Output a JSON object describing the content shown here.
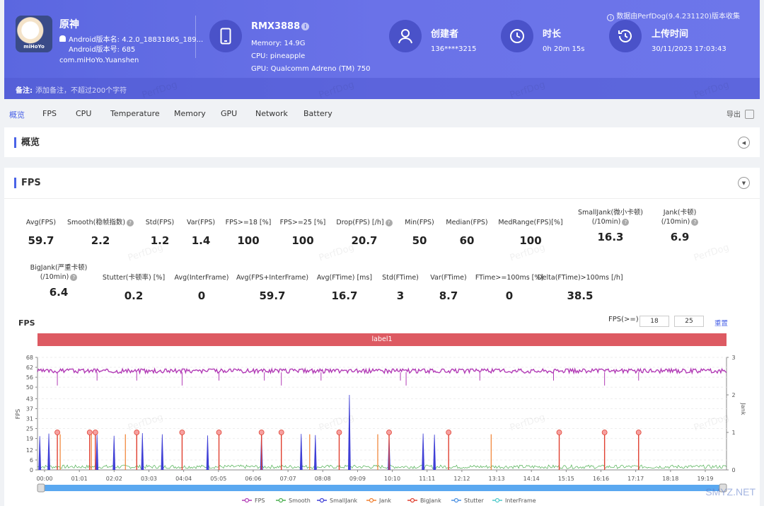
{
  "header": {
    "collect_note": "数据由PerfDog(9.4.231120)版本收集",
    "app": {
      "logo_text": "miHoYo",
      "name": "原神",
      "version_name": "Android版本名: 4.2.0_18831865_189...",
      "version_code": "Android版本号: 685",
      "package": "com.miHoYo.Yuanshen"
    },
    "device": {
      "title": "RMX3888",
      "memory": "Memory: 14.9G",
      "cpu": "CPU: pineapple",
      "gpu": "GPU: Qualcomm Adreno (TM) 750"
    },
    "creator": {
      "title": "创建者",
      "value": "136****3215"
    },
    "duration": {
      "title": "时长",
      "value": "0h 20m 15s"
    },
    "upload": {
      "title": "上传时间",
      "value": "30/11/2023 17:03:43"
    },
    "remark_label": "备注:",
    "remark_placeholder": "添加备注，不超过200个字符"
  },
  "tabs": [
    "概览",
    "FPS",
    "CPU",
    "Temperature",
    "Memory",
    "GPU",
    "Network",
    "Battery"
  ],
  "export_label": "导出",
  "overview_title": "概览",
  "fps_title": "FPS",
  "metrics_row1": [
    {
      "label": "Avg(FPS)",
      "value": "59.7",
      "q": false
    },
    {
      "label": "Smooth(稳帧指数)",
      "value": "2.2",
      "q": true
    },
    {
      "label": "Std(FPS)",
      "value": "1.2",
      "q": false
    },
    {
      "label": "Var(FPS)",
      "value": "1.4",
      "q": false
    },
    {
      "label": "FPS>=18 [%]",
      "value": "100",
      "q": false
    },
    {
      "label": "FPS>=25 [%]",
      "value": "100",
      "q": false
    },
    {
      "label": "Drop(FPS) [/h]",
      "value": "20.7",
      "q": true
    },
    {
      "label": "Min(FPS)",
      "value": "50",
      "q": false
    },
    {
      "label": "Median(FPS)",
      "value": "60",
      "q": false
    },
    {
      "label": "MedRange(FPS)[%]",
      "value": "100",
      "q": false
    },
    {
      "label": "SmallJank(微小卡顿)",
      "label2": "(/10min)",
      "value": "16.3",
      "q": true
    },
    {
      "label": "Jank(卡顿)",
      "label2": "(/10min)",
      "value": "6.9",
      "q": true
    }
  ],
  "metrics_row2": [
    {
      "label": "BigJank(严重卡顿)",
      "label2": "(/10min)",
      "value": "6.4",
      "q": true
    },
    {
      "label": "Stutter(卡顿率) [%]",
      "value": "0.2",
      "q": false
    },
    {
      "label": "Avg(InterFrame)",
      "value": "0",
      "q": false
    },
    {
      "label": "Avg(FPS+InterFrame)",
      "value": "59.7",
      "q": false
    },
    {
      "label": "Avg(FTime) [ms]",
      "value": "16.7",
      "q": false
    },
    {
      "label": "Std(FTime)",
      "value": "3",
      "q": false
    },
    {
      "label": "Var(FTime)",
      "value": "8.7",
      "q": false
    },
    {
      "label": "FTime>=100ms [%]",
      "value": "0",
      "q": false
    },
    {
      "label": "Delta(FTime)>100ms [/h]",
      "value": "38.5",
      "q": false
    }
  ],
  "chart": {
    "title": "FPS",
    "threshold_label": "FPS(>=)",
    "threshold1": "18",
    "threshold2": "25",
    "reset_label": "重置",
    "label_bar": "label1",
    "left_axis_title": "FPS",
    "right_axis_title": "Jank",
    "y_ticks": [
      "68",
      "62",
      "56",
      "50",
      "43",
      "37",
      "31",
      "25",
      "19",
      "12",
      "6",
      "0"
    ],
    "y2_ticks": [
      "3",
      "2",
      "1",
      "0"
    ],
    "x_ticks": [
      "00:00",
      "01:01",
      "02:02",
      "03:03",
      "04:04",
      "05:05",
      "06:06",
      "07:07",
      "08:08",
      "09:09",
      "10:10",
      "11:11",
      "12:12",
      "13:13",
      "14:14",
      "15:15",
      "16:16",
      "17:17",
      "18:18",
      "19:19"
    ],
    "legend": [
      {
        "name": "FPS",
        "color": "#b23cb6"
      },
      {
        "name": "Smooth",
        "color": "#4caf50"
      },
      {
        "name": "SmallJank",
        "color": "#3f3fd6"
      },
      {
        "name": "Jank",
        "color": "#f08030"
      },
      {
        "name": "BigJank",
        "color": "#e04030"
      },
      {
        "name": "Stutter",
        "color": "#4a90e2"
      },
      {
        "name": "InterFrame",
        "color": "#4ec9c9"
      }
    ]
  },
  "chart_data": {
    "type": "line",
    "title": "FPS",
    "xlabel": "",
    "ylabel": "FPS",
    "ylim": [
      0,
      68
    ],
    "y2label": "Jank",
    "y2lim": [
      0,
      3
    ],
    "duration_seconds": 1215,
    "series": [
      {
        "name": "FPS",
        "axis": "left",
        "baseline": 60,
        "range": [
          56,
          61
        ],
        "dips_at_s": [
          35,
          105,
          175,
          255,
          320,
          400,
          430,
          500,
          640,
          650,
          780,
          910,
          1000,
          1060
        ]
      },
      {
        "name": "Smooth",
        "axis": "left",
        "approx_value": 2.2
      },
      {
        "name": "SmallJank",
        "axis": "right",
        "spikes_at_s": [
          4,
          20,
          105,
          135,
          185,
          220,
          300,
          395,
          465,
          490,
          620,
          680,
          700
        ]
      },
      {
        "name": "Jank",
        "axis": "right",
        "spikes_at_s": [
          40,
          95,
          155,
          480,
          600,
          800
        ]
      },
      {
        "name": "BigJank",
        "axis": "right",
        "value": 1,
        "spikes_at_s": [
          35,
          92,
          102,
          175,
          255,
          320,
          395,
          430,
          532,
          620,
          725,
          920,
          1000,
          1060
        ]
      }
    ],
    "spike_max": {
      "series": "SmallJank",
      "at_s": 550,
      "value": 2.0
    }
  }
}
